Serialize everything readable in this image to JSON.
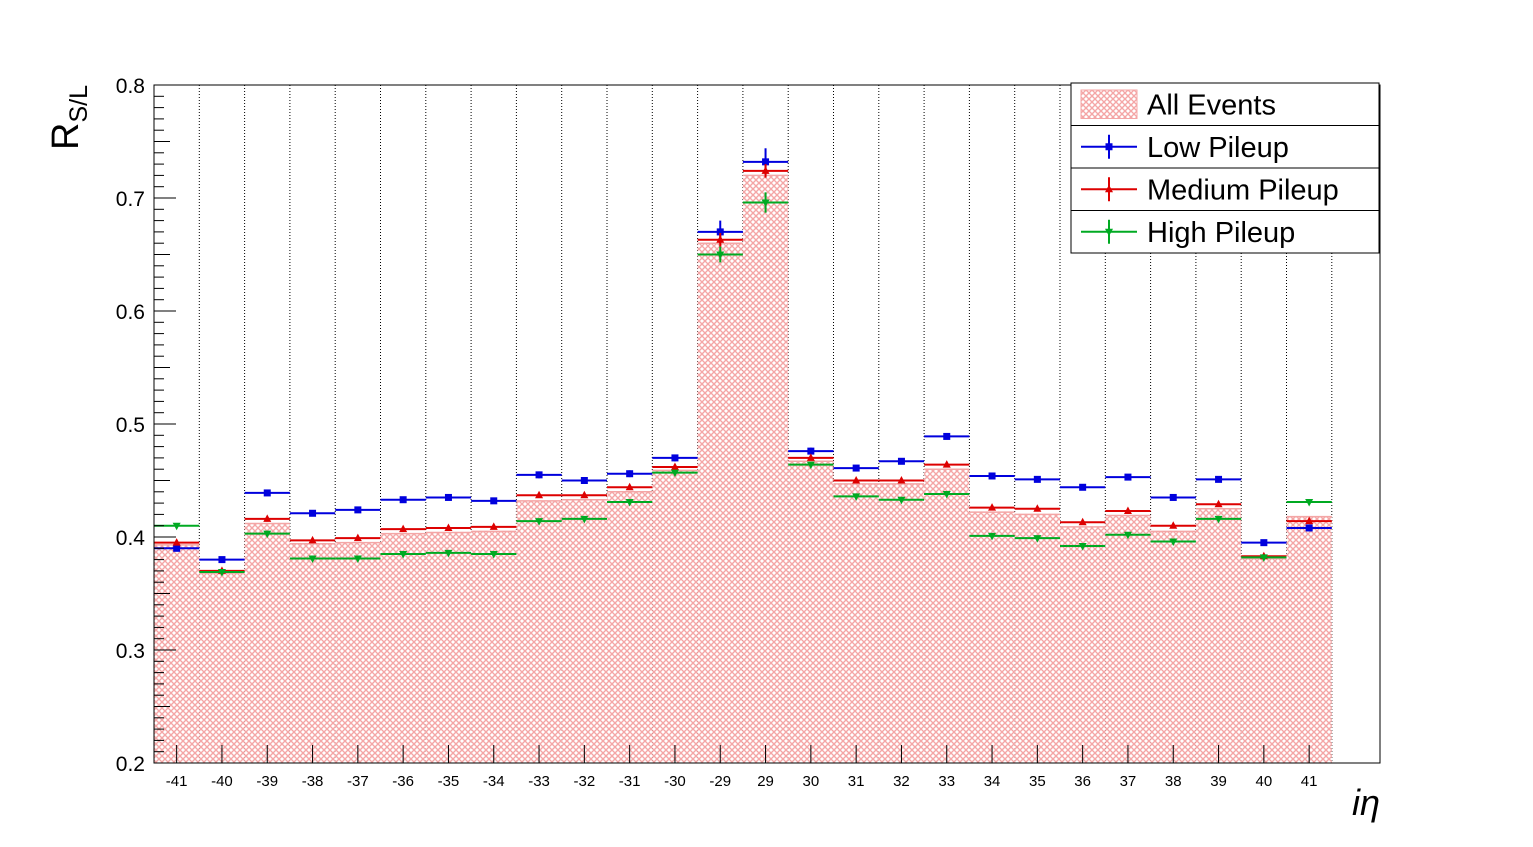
{
  "chart_data": {
    "type": "bar",
    "categories": [
      "-41",
      "-40",
      "-39",
      "-38",
      "-37",
      "-36",
      "-35",
      "-34",
      "-33",
      "-32",
      "-31",
      "-30",
      "-29",
      "29",
      "30",
      "31",
      "32",
      "33",
      "34",
      "35",
      "36",
      "37",
      "38",
      "39",
      "40",
      "41"
    ],
    "ylabel_main": "R",
    "ylabel_sub": "S/L",
    "xlabel": "iη",
    "ylim": [
      0.2,
      0.8
    ],
    "yticks": [
      "0.2",
      "0.3",
      "0.4",
      "0.5",
      "0.6",
      "0.7",
      "0.8"
    ],
    "legend_position": "top-right",
    "grid_x": true,
    "series": [
      {
        "name": "All Events",
        "kind": "hatched-histogram",
        "color": "#f4a6a6",
        "values": [
          0.393,
          0.368,
          0.412,
          0.394,
          0.395,
          0.403,
          0.404,
          0.405,
          0.432,
          0.433,
          0.44,
          0.459,
          0.66,
          0.72,
          0.467,
          0.447,
          0.447,
          0.46,
          0.422,
          0.42,
          0.409,
          0.419,
          0.405,
          0.425,
          0.381,
          0.418
        ]
      },
      {
        "name": "Low Pileup",
        "kind": "markers",
        "marker": "square",
        "color": "#0000dd",
        "values": [
          0.39,
          0.38,
          0.439,
          0.421,
          0.424,
          0.433,
          0.435,
          0.432,
          0.455,
          0.45,
          0.456,
          0.47,
          0.67,
          0.732,
          0.476,
          0.461,
          0.467,
          0.489,
          0.454,
          0.451,
          0.444,
          0.453,
          0.435,
          0.451,
          0.395,
          0.408
        ],
        "errors": [
          0.002,
          0.002,
          0.002,
          0.002,
          0.002,
          0.002,
          0.002,
          0.002,
          0.003,
          0.002,
          0.003,
          0.003,
          0.01,
          0.012,
          0.003,
          0.002,
          0.002,
          0.002,
          0.002,
          0.002,
          0.002,
          0.002,
          0.002,
          0.002,
          0.002,
          0.003
        ]
      },
      {
        "name": "Medium Pileup",
        "kind": "markers",
        "marker": "triangle-up",
        "color": "#dd0000",
        "values": [
          0.395,
          0.37,
          0.416,
          0.397,
          0.399,
          0.407,
          0.408,
          0.409,
          0.437,
          0.437,
          0.444,
          0.462,
          0.663,
          0.724,
          0.47,
          0.45,
          0.45,
          0.464,
          0.426,
          0.425,
          0.413,
          0.423,
          0.41,
          0.429,
          0.383,
          0.414
        ],
        "errors": [
          0.002,
          0.002,
          0.002,
          0.002,
          0.002,
          0.002,
          0.002,
          0.002,
          0.002,
          0.002,
          0.002,
          0.002,
          0.006,
          0.006,
          0.002,
          0.002,
          0.002,
          0.002,
          0.002,
          0.002,
          0.002,
          0.002,
          0.002,
          0.002,
          0.002,
          0.002
        ]
      },
      {
        "name": "High Pileup",
        "kind": "markers",
        "marker": "triangle-down",
        "color": "#00aa22",
        "values": [
          0.41,
          0.369,
          0.403,
          0.381,
          0.381,
          0.385,
          0.386,
          0.385,
          0.414,
          0.416,
          0.431,
          0.457,
          0.65,
          0.696,
          0.464,
          0.436,
          0.433,
          0.438,
          0.401,
          0.399,
          0.392,
          0.402,
          0.396,
          0.416,
          0.382,
          0.431
        ],
        "errors": [
          0.002,
          0.002,
          0.002,
          0.002,
          0.002,
          0.002,
          0.002,
          0.002,
          0.002,
          0.002,
          0.002,
          0.002,
          0.007,
          0.009,
          0.002,
          0.002,
          0.002,
          0.002,
          0.002,
          0.002,
          0.002,
          0.002,
          0.002,
          0.002,
          0.002,
          0.002
        ]
      }
    ]
  }
}
